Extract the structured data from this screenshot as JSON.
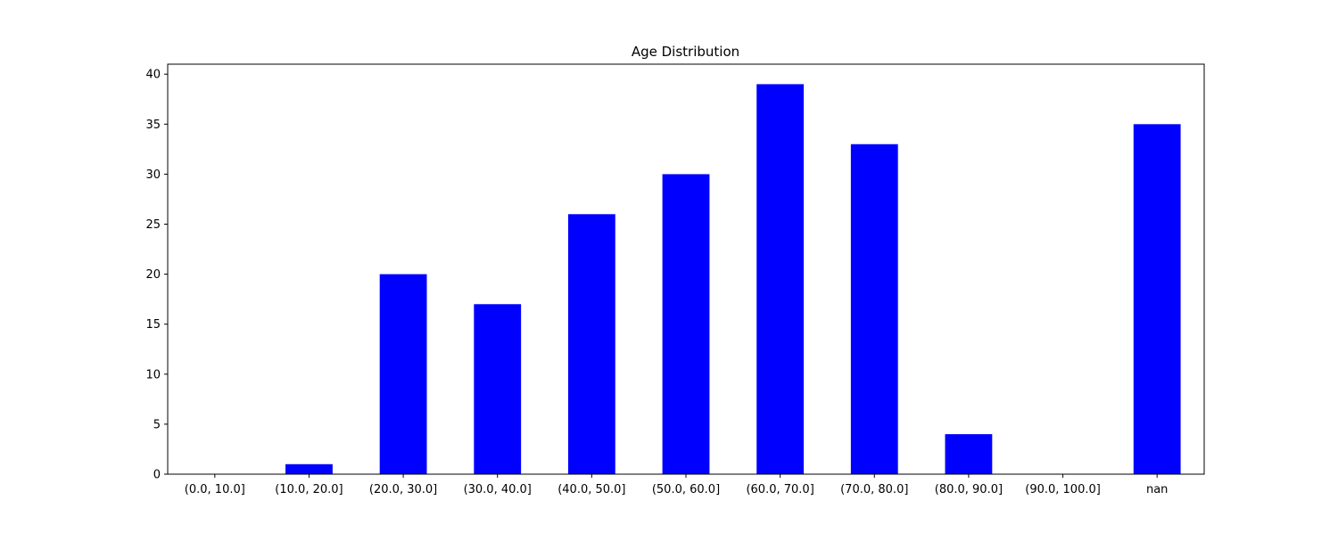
{
  "chart_data": {
    "type": "bar",
    "title": "Age Distribution",
    "xlabel": "",
    "ylabel": "",
    "categories": [
      "(0.0, 10.0]",
      "(10.0, 20.0]",
      "(20.0, 30.0]",
      "(30.0, 40.0]",
      "(40.0, 50.0]",
      "(50.0, 60.0]",
      "(60.0, 70.0]",
      "(70.0, 80.0]",
      "(80.0, 90.0]",
      "(90.0, 100.0]",
      "nan"
    ],
    "values": [
      0,
      1,
      20,
      17,
      26,
      30,
      39,
      33,
      4,
      0,
      35
    ],
    "ylim": [
      0,
      41
    ],
    "yticks": [
      0,
      5,
      10,
      15,
      20,
      25,
      30,
      35,
      40
    ],
    "bar_color": "#0000ff",
    "grid": false,
    "legend": "none"
  }
}
